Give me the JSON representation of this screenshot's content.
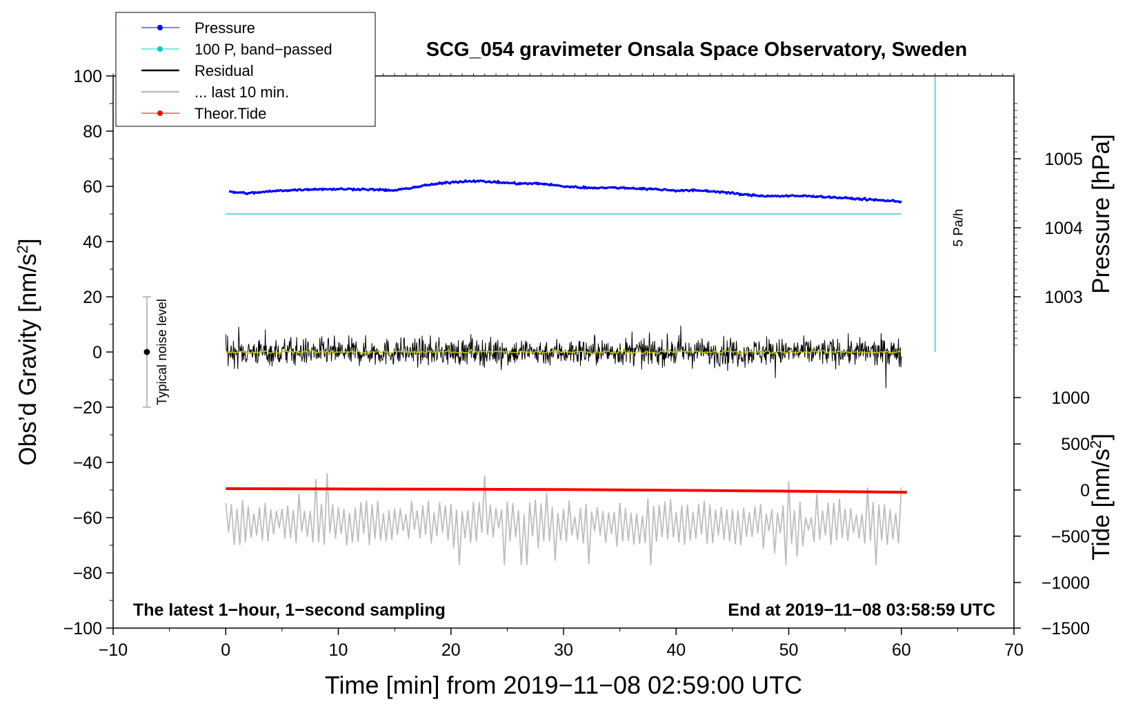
{
  "chart_data": {
    "type": "line",
    "title": "SCG_054 gravimeter Onsala Space Observatory, Sweden",
    "xlabel": "Time [min] from 2019−11−08 02:59:00 UTC",
    "ylabel_left": "Obs’d Gravity [nm/s²]",
    "ylabel_right_top": "Pressure [hPa]",
    "ylabel_right_bottom": "Tide [nm/s²]",
    "xlim": [
      -10,
      70
    ],
    "ylim": [
      -100,
      100
    ],
    "pressure_axis": {
      "ticks": [
        1003,
        1004,
        1005
      ],
      "gravity_equiv": [
        20,
        45,
        70
      ]
    },
    "tide_axis": {
      "ticks": [
        1000,
        500,
        0,
        -500,
        -1000,
        -1500
      ],
      "gravity_equiv": [
        -16.5,
        -33.3,
        -50,
        -66.7,
        -83.5,
        -100
      ]
    },
    "x_ticks": [
      "−10",
      "0",
      "10",
      "20",
      "30",
      "40",
      "50",
      "60",
      "70"
    ],
    "x_tick_values": [
      -10,
      0,
      10,
      20,
      30,
      40,
      50,
      60,
      70
    ],
    "y_ticks": [
      "100",
      "80",
      "60",
      "40",
      "20",
      "0",
      "−20",
      "−40",
      "−60",
      "−80",
      "−100"
    ],
    "y_tick_values": [
      100,
      80,
      60,
      40,
      20,
      0,
      -20,
      -40,
      -60,
      -80,
      -100
    ],
    "pressure_tick_labels": [
      "1005",
      "1004",
      "1003"
    ],
    "tide_tick_labels": [
      "1000",
      "500",
      "0",
      "−500",
      "−1000",
      "−1500"
    ],
    "legend": {
      "position": "top-left",
      "entries": [
        {
          "label": "Pressure",
          "color": "#0000ff",
          "marker": true
        },
        {
          "label": "100 P, band−passed",
          "color": "#00c8c8",
          "marker": true
        },
        {
          "label": "Residual",
          "color": "#000000",
          "marker": false
        },
        {
          "label": "... last 10 min.",
          "color": "#bdbdbd",
          "marker": false
        },
        {
          "label": "Theor.Tide",
          "color": "#ff0000",
          "marker": true
        }
      ]
    },
    "annotations": {
      "left_note": "The latest 1−hour, 1−second sampling",
      "right_note": "End at 2019−11−08 03:58:59 UTC",
      "noise_label": "Typical noise level",
      "noise_bar": {
        "x": -7,
        "center": 0,
        "low": -20,
        "high": 20
      },
      "rate_label": "5 Pa/h",
      "rate_bar": {
        "x": 63,
        "low": 0,
        "high": 100
      }
    },
    "series": [
      {
        "name": "Pressure",
        "color": "#0000ff",
        "x": [
          0.3,
          2,
          5,
          8,
          10,
          12,
          15,
          18,
          20,
          22,
          24,
          26,
          28,
          30,
          32,
          35,
          38,
          40,
          42,
          44,
          46,
          48,
          50,
          52,
          54,
          56,
          58,
          60
        ],
        "y": [
          58,
          57.5,
          58.5,
          59,
          59,
          59,
          58.5,
          60.5,
          61.5,
          62,
          61.5,
          61,
          61,
          60,
          59.5,
          59.5,
          59,
          58.5,
          58.5,
          58,
          57,
          56.5,
          56.5,
          56.5,
          56,
          55.5,
          55,
          54.5
        ]
      },
      {
        "name": "100 P, band−passed",
        "color": "#00c8c8",
        "x": [
          0,
          60
        ],
        "y": [
          50,
          50
        ]
      },
      {
        "name": "Residual",
        "color": "#000000",
        "x_range": [
          0,
          60
        ],
        "center": 0,
        "typical_amplitude": 6,
        "max": 17,
        "min": -15
      },
      {
        "name": "Residual smoothed",
        "color": "#c8c800",
        "x_range": [
          0,
          60
        ],
        "center": 0,
        "typical_amplitude": 1
      },
      {
        "name": "... last 10 min.",
        "color": "#bdbdbd",
        "x_range": [
          0,
          60
        ],
        "center": -62,
        "typical_amplitude": 5,
        "max": -44,
        "min": -77
      },
      {
        "name": "Theor.Tide",
        "color": "#ff0000",
        "x": [
          0,
          10,
          20,
          30,
          40,
          50,
          60.5
        ],
        "y": [
          -49.5,
          -49.6,
          -49.7,
          -49.8,
          -50.1,
          -50.4,
          -50.8
        ]
      }
    ]
  }
}
